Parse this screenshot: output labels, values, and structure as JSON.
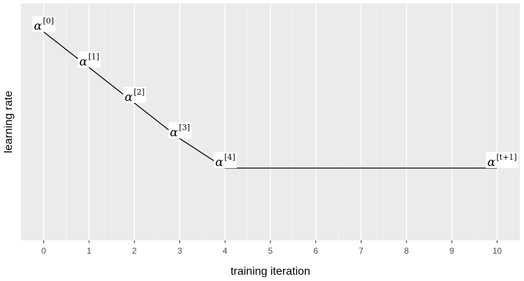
{
  "chart_data": {
    "type": "line",
    "title": "",
    "xlabel": "training iteration",
    "ylabel": "learning rate",
    "xlim": [
      -0.5,
      10.5
    ],
    "ylim": [
      0,
      1
    ],
    "x_ticks": [
      "0",
      "1",
      "2",
      "3",
      "4",
      "5",
      "6",
      "7",
      "8",
      "9",
      "10"
    ],
    "y_ticks": [],
    "grid": true,
    "panel_background": "#ebebeb",
    "line_color": "#000000",
    "series": [
      {
        "x": [
          0,
          1,
          2,
          3,
          4,
          10
        ],
        "y": [
          0.88,
          0.73,
          0.58,
          0.43,
          0.305,
          0.305
        ]
      }
    ],
    "point_labels": [
      {
        "x": 0,
        "y": 0.88,
        "symbol": "α",
        "sup": "[0]"
      },
      {
        "x": 1,
        "y": 0.73,
        "symbol": "α",
        "sup": "[1]"
      },
      {
        "x": 2,
        "y": 0.58,
        "symbol": "α",
        "sup": "[2]"
      },
      {
        "x": 3,
        "y": 0.43,
        "symbol": "α",
        "sup": "[3]"
      },
      {
        "x": 4,
        "y": 0.305,
        "symbol": "α",
        "sup": "[4]"
      },
      {
        "x": 10,
        "y": 0.305,
        "symbol": "α",
        "sup": "[t+1]"
      }
    ]
  }
}
